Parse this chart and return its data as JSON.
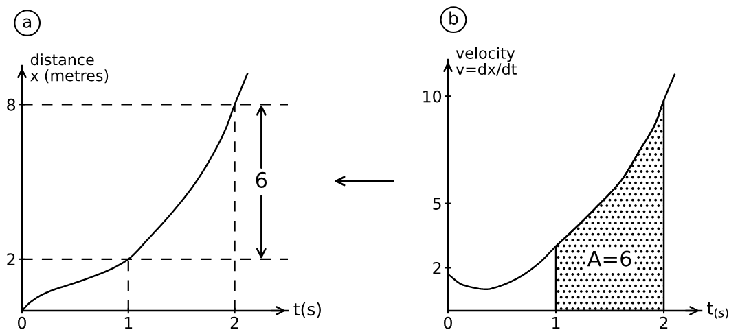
{
  "chart_data": [
    {
      "type": "line",
      "title": "a",
      "xlabel": "t(s)",
      "ylabel": "distance\nx (metres)",
      "xlim": [
        0,
        2.5
      ],
      "ylim": [
        0,
        9.5
      ],
      "xticks": [
        0,
        1,
        2
      ],
      "yticks": [
        2,
        8
      ],
      "series": [
        {
          "color": "#000000",
          "x": [
            0,
            0.07,
            0.18,
            0.29,
            0.44,
            0.65,
            0.83,
            1.0,
            1.19,
            1.41,
            1.62,
            1.8,
            1.92,
            2.0,
            2.06,
            2.12
          ],
          "values": [
            0,
            0.3,
            0.6,
            0.8,
            1.0,
            1.3,
            1.6,
            2.0,
            2.8,
            3.8,
            4.9,
            6.1,
            7.1,
            8.0,
            8.6,
            9.2
          ]
        }
      ],
      "ref_lines": [
        {
          "axis": "y",
          "value": 8,
          "line_style": "dashed",
          "color": "#000000"
        },
        {
          "axis": "y",
          "value": 2,
          "line_style": "dashed",
          "color": "#000000"
        },
        {
          "axis": "x",
          "value": 1,
          "line_style": "dashed",
          "color": "#000000"
        },
        {
          "axis": "x",
          "value": 2,
          "line_style": "dashed",
          "color": "#000000"
        }
      ],
      "annotations": [
        {
          "text": "6",
          "x": 2.25,
          "y": 8
        }
      ]
    },
    {
      "type": "line",
      "title": "b",
      "xlabel": "t$_{(s)}$",
      "ylabel": "velocity\nv=dx/dt",
      "xlim": [
        0,
        2.35
      ],
      "ylim": [
        0,
        11.7
      ],
      "xticks": [
        0,
        1,
        2
      ],
      "yticks": [
        2,
        5,
        10
      ],
      "series": [
        {
          "color": "#000000",
          "x": [
            0,
            0.14,
            0.36,
            0.45,
            0.64,
            0.84,
            1.0,
            1.17,
            1.39,
            1.61,
            1.78,
            1.92,
            2.0,
            2.1
          ],
          "values": [
            1.7,
            1.2,
            1.0,
            1.1,
            1.5,
            2.2,
            3.0,
            3.8,
            4.9,
            6.1,
            7.5,
            8.7,
            9.8,
            11.0
          ]
        },
        {
          "type": "area",
          "color": "#000000",
          "x": [
            1.0,
            1.17,
            1.39,
            1.61,
            1.78,
            1.92,
            2.0
          ],
          "values": [
            3.0,
            3.8,
            4.9,
            6.1,
            7.5,
            8.7,
            9.8
          ]
        }
      ],
      "annotations": [
        "A=6"
      ]
    }
  ]
}
